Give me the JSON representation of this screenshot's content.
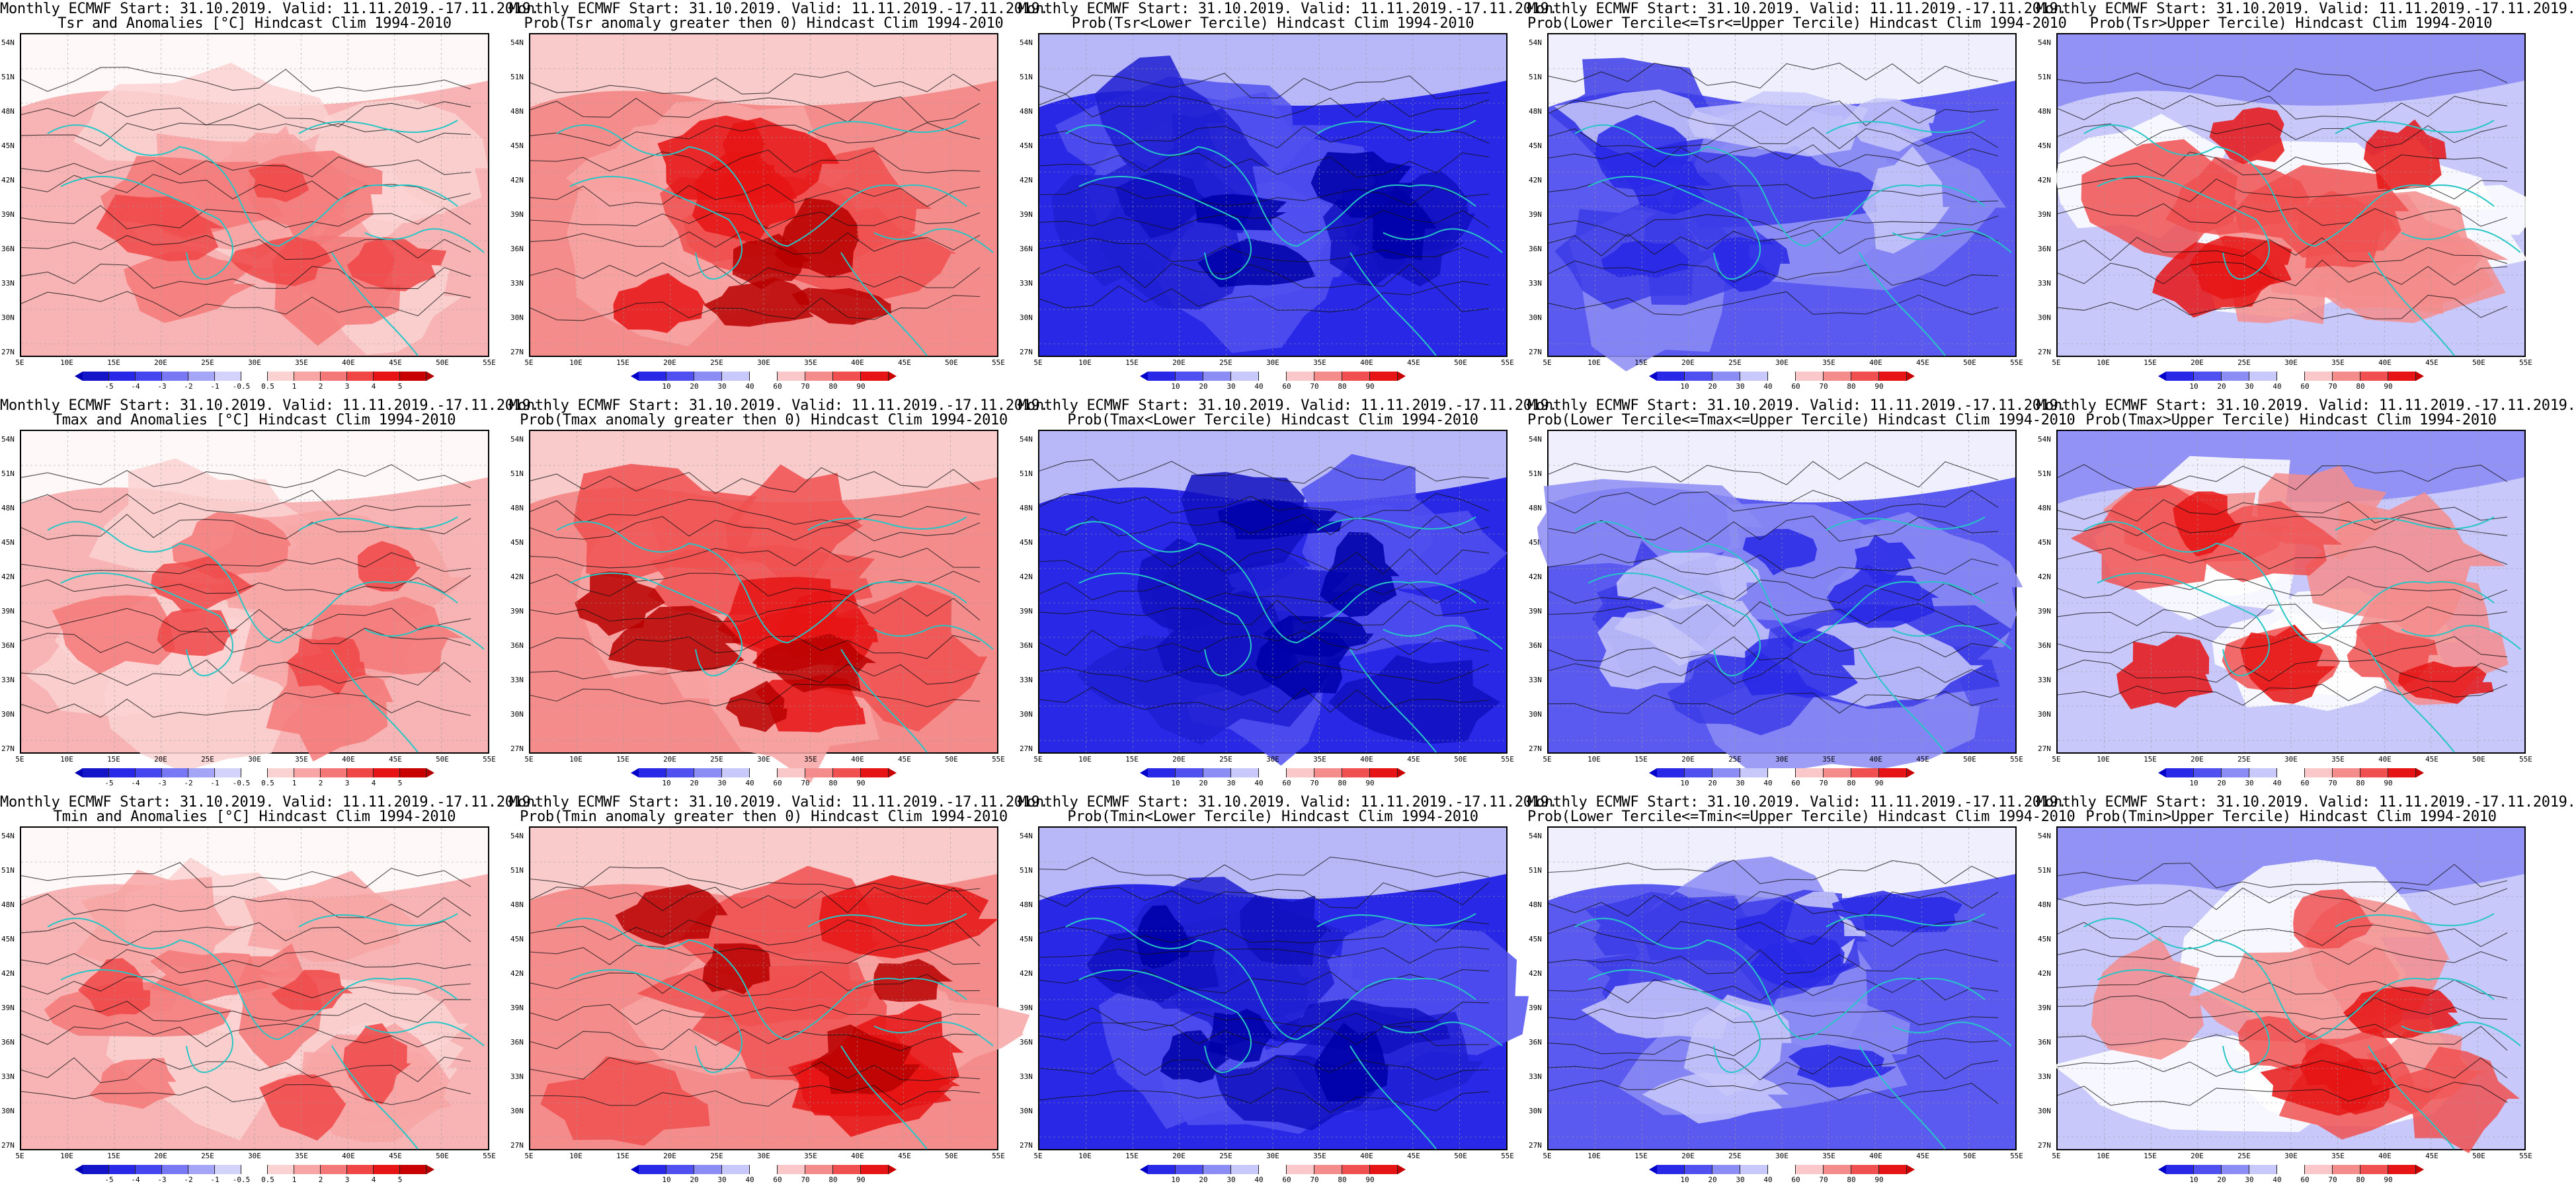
{
  "rows": [
    {
      "variable": "Tsr",
      "panels": [
        {
          "type": "anom",
          "title1": "Monthly ECMWF Start: 31.10.2019. Valid: 11.11.2019.-17.11.2019.",
          "title2": "Tsr and Anomalies [°C] Hindcast Clim 1994-2010"
        },
        {
          "type": "probpos",
          "title1": "Monthly ECMWF Start: 31.10.2019. Valid: 11.11.2019.-17.11.2019.",
          "title2": "Prob(Tsr anomaly greater then 0) Hindcast Clim 1994-2010"
        },
        {
          "type": "problow",
          "title1": "Monthly ECMWF Start: 31.10.2019. Valid: 11.11.2019.-17.11.2019.",
          "title2": "Prob(Tsr<Lower Tercile) Hindcast Clim 1994-2010"
        },
        {
          "type": "probmid",
          "title1": "Monthly ECMWF Start: 31.10.2019. Valid: 11.11.2019.-17.11.2019.",
          "title2": "Prob(Lower Tercile<=Tsr<=Upper Tercile) Hindcast Clim 1994-2010"
        },
        {
          "type": "probup",
          "title1": "Monthly ECMWF Start: 31.10.2019. Valid: 11.11.2019.-17.11.2019.",
          "title2": "Prob(Tsr>Upper Tercile) Hindcast Clim 1994-2010"
        }
      ]
    },
    {
      "variable": "Tmax",
      "panels": [
        {
          "type": "anom",
          "title1": "Monthly ECMWF Start: 31.10.2019. Valid: 11.11.2019.-17.11.2019.",
          "title2": "Tmax and Anomalies [°C] Hindcast Clim 1994-2010"
        },
        {
          "type": "probpos",
          "title1": "Monthly ECMWF Start: 31.10.2019. Valid: 11.11.2019.-17.11.2019.",
          "title2": "Prob(Tmax anomaly greater then 0) Hindcast Clim 1994-2010"
        },
        {
          "type": "problow",
          "title1": "Monthly ECMWF Start: 31.10.2019. Valid: 11.11.2019.-17.11.2019.",
          "title2": "Prob(Tmax<Lower Tercile) Hindcast Clim 1994-2010"
        },
        {
          "type": "probmid",
          "title1": "Monthly ECMWF Start: 31.10.2019. Valid: 11.11.2019.-17.11.2019.",
          "title2": "Prob(Lower Tercile<=Tmax<=Upper Tercile) Hindcast Clim 1994-2010"
        },
        {
          "type": "probup",
          "title1": "Monthly ECMWF Start: 31.10.2019. Valid: 11.11.2019.-17.11.2019.",
          "title2": "Prob(Tmax>Upper Tercile) Hindcast Clim 1994-2010"
        }
      ]
    },
    {
      "variable": "Tmin",
      "panels": [
        {
          "type": "anom",
          "title1": "Monthly ECMWF Start: 31.10.2019. Valid: 11.11.2019.-17.11.2019.",
          "title2": "Tmin and Anomalies [°C] Hindcast Clim 1994-2010"
        },
        {
          "type": "probpos",
          "title1": "Monthly ECMWF Start: 31.10.2019. Valid: 11.11.2019.-17.11.2019.",
          "title2": "Prob(Tmin anomaly greater then 0) Hindcast Clim 1994-2010"
        },
        {
          "type": "problow",
          "title1": "Monthly ECMWF Start: 31.10.2019. Valid: 11.11.2019.-17.11.2019.",
          "title2": "Prob(Tmin<Lower Tercile) Hindcast Clim 1994-2010"
        },
        {
          "type": "probmid",
          "title1": "Monthly ECMWF Start: 31.10.2019. Valid: 11.11.2019.-17.11.2019.",
          "title2": "Prob(Lower Tercile<=Tmin<=Upper Tercile) Hindcast Clim 1994-2010"
        },
        {
          "type": "probup",
          "title1": "Monthly ECMWF Start: 31.10.2019. Valid: 11.11.2019.-17.11.2019.",
          "title2": "Prob(Tmin>Upper Tercile) Hindcast Clim 1994-2010"
        }
      ]
    }
  ],
  "lat_labels": [
    "54N",
    "51N",
    "48N",
    "45N",
    "42N",
    "39N",
    "36N",
    "33N",
    "30N",
    "27N"
  ],
  "lon_labels": [
    "5E",
    "10E",
    "15E",
    "20E",
    "25E",
    "30E",
    "35E",
    "40E",
    "45E",
    "50E",
    "55E"
  ],
  "colorbars": {
    "anom": {
      "labels": [
        "-5",
        "-4",
        "-3",
        "-2",
        "-1",
        "-0.5",
        "0.5",
        "1",
        "2",
        "3",
        "4",
        "5"
      ],
      "colors": [
        "#1414c8",
        "#2828e6",
        "#4646f0",
        "#7878f5",
        "#a5a5f8",
        "#d2d2fb",
        "#ffffff",
        "#fbd2d2",
        "#f8a5a5",
        "#f57878",
        "#f04646",
        "#e61414",
        "#c80000"
      ],
      "tip_left": "#0000b4",
      "tip_right": "#b40000"
    },
    "prob": {
      "labels": [
        "10",
        "20",
        "30",
        "40",
        "60",
        "70",
        "80",
        "90"
      ],
      "colors": [
        "#2828e6",
        "#5050f0",
        "#8c8cf5",
        "#c8c8fa",
        "#ffffff",
        "#fac8c8",
        "#f58c8c",
        "#f05050",
        "#e61414"
      ],
      "tip_left": "#0000c8",
      "tip_right": "#c80000"
    }
  },
  "theme": {
    "coast": "#26c6c6",
    "contour": "#111111",
    "grid": "#9a9a9a"
  }
}
